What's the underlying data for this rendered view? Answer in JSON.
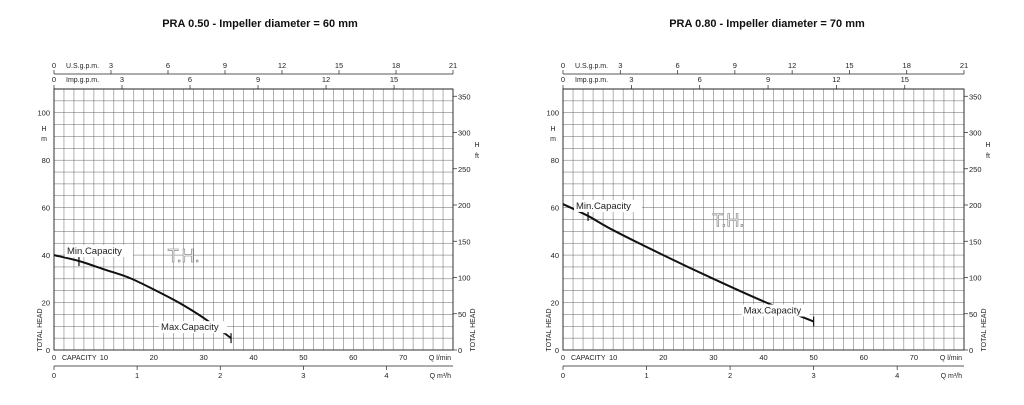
{
  "chart_data": [
    {
      "type": "line",
      "title": "PRA 0.50 - Impeller diameter = 60 mm",
      "watermark": "T.H.",
      "x_axis_bottom_lpm": {
        "label_left": "CAPACITY",
        "label_right": "Q l/min",
        "range": [
          0,
          80
        ],
        "ticks": [
          "0",
          "10",
          "20",
          "30",
          "40",
          "50",
          "60",
          "70"
        ]
      },
      "x_axis_bottom_m3h": {
        "label": "Q m³/h",
        "range": [
          0,
          4.8
        ],
        "ticks": [
          "0",
          "1",
          "2",
          "3",
          "4"
        ]
      },
      "x_axis_top_usgpm": {
        "label": "U.S.g.p.m.",
        "range": [
          0,
          21
        ],
        "ticks": [
          "0",
          "3",
          "6",
          "9",
          "12",
          "15",
          "18",
          "21"
        ]
      },
      "x_axis_top_impgpm": {
        "label": "Imp.g.p.m.",
        "range": [
          0,
          17.6
        ],
        "ticks": [
          "0",
          "3",
          "6",
          "9",
          "12",
          "15"
        ]
      },
      "y_axis_left_m": {
        "label": "TOTAL HEAD",
        "unit_top": "H",
        "unit_bottom": "m",
        "range": [
          0,
          110
        ],
        "ticks": [
          "0",
          "20",
          "40",
          "60",
          "80",
          "100"
        ]
      },
      "y_axis_right_ft": {
        "label": "TOTAL HEAD",
        "unit_top": "H",
        "unit_bottom": "ft",
        "range": [
          0,
          360
        ],
        "ticks": [
          "0",
          "50",
          "100",
          "150",
          "200",
          "250",
          "300",
          "350"
        ]
      },
      "grid": true,
      "series": [
        {
          "x": [
            0,
            5,
            10,
            15,
            20,
            25,
            30,
            35.5
          ],
          "y": [
            40,
            37.5,
            34,
            30.5,
            25.5,
            20,
            13.5,
            5
          ]
        }
      ],
      "annotations": [
        {
          "text": "Min.Capacity",
          "x": 5,
          "y": 37.5
        },
        {
          "text": "Max.Capacity",
          "x": 35.5,
          "y": 5
        }
      ]
    },
    {
      "type": "line",
      "title": "PRA 0.80 - Impeller diameter = 70 mm",
      "watermark": "T.H.",
      "x_axis_bottom_lpm": {
        "label_left": "CAPACITY",
        "label_right": "Q l/min",
        "range": [
          0,
          80
        ],
        "ticks": [
          "0",
          "10",
          "20",
          "30",
          "40",
          "50",
          "60",
          "70"
        ]
      },
      "x_axis_bottom_m3h": {
        "label": "Q m³/h",
        "range": [
          0,
          4.8
        ],
        "ticks": [
          "0",
          "1",
          "2",
          "3",
          "4"
        ]
      },
      "x_axis_top_usgpm": {
        "label": "U.S.g.p.m.",
        "range": [
          0,
          21
        ],
        "ticks": [
          "0",
          "3",
          "6",
          "9",
          "12",
          "15",
          "18",
          "21"
        ]
      },
      "x_axis_top_impgpm": {
        "label": "Imp.g.p.m.",
        "range": [
          0,
          17.6
        ],
        "ticks": [
          "0",
          "3",
          "6",
          "9",
          "12",
          "15"
        ]
      },
      "y_axis_left_m": {
        "label": "TOTAL HEAD",
        "unit_top": "H",
        "unit_bottom": "m",
        "range": [
          0,
          110
        ],
        "ticks": [
          "0",
          "20",
          "40",
          "60",
          "80",
          "100"
        ]
      },
      "y_axis_right_ft": {
        "label": "TOTAL HEAD",
        "unit_top": "H",
        "unit_bottom": "ft",
        "range": [
          0,
          360
        ],
        "ticks": [
          "0",
          "50",
          "100",
          "150",
          "200",
          "250",
          "300",
          "350"
        ]
      },
      "grid": true,
      "series": [
        {
          "x": [
            0,
            5,
            10,
            20,
            30,
            40,
            50
          ],
          "y": [
            61.5,
            56.5,
            50.5,
            40,
            30,
            20.5,
            12
          ]
        }
      ],
      "annotations": [
        {
          "text": "Min.Capacity",
          "x": 5,
          "y": 56.5
        },
        {
          "text": "Max.Capacity",
          "x": 50,
          "y": 12
        }
      ]
    }
  ]
}
